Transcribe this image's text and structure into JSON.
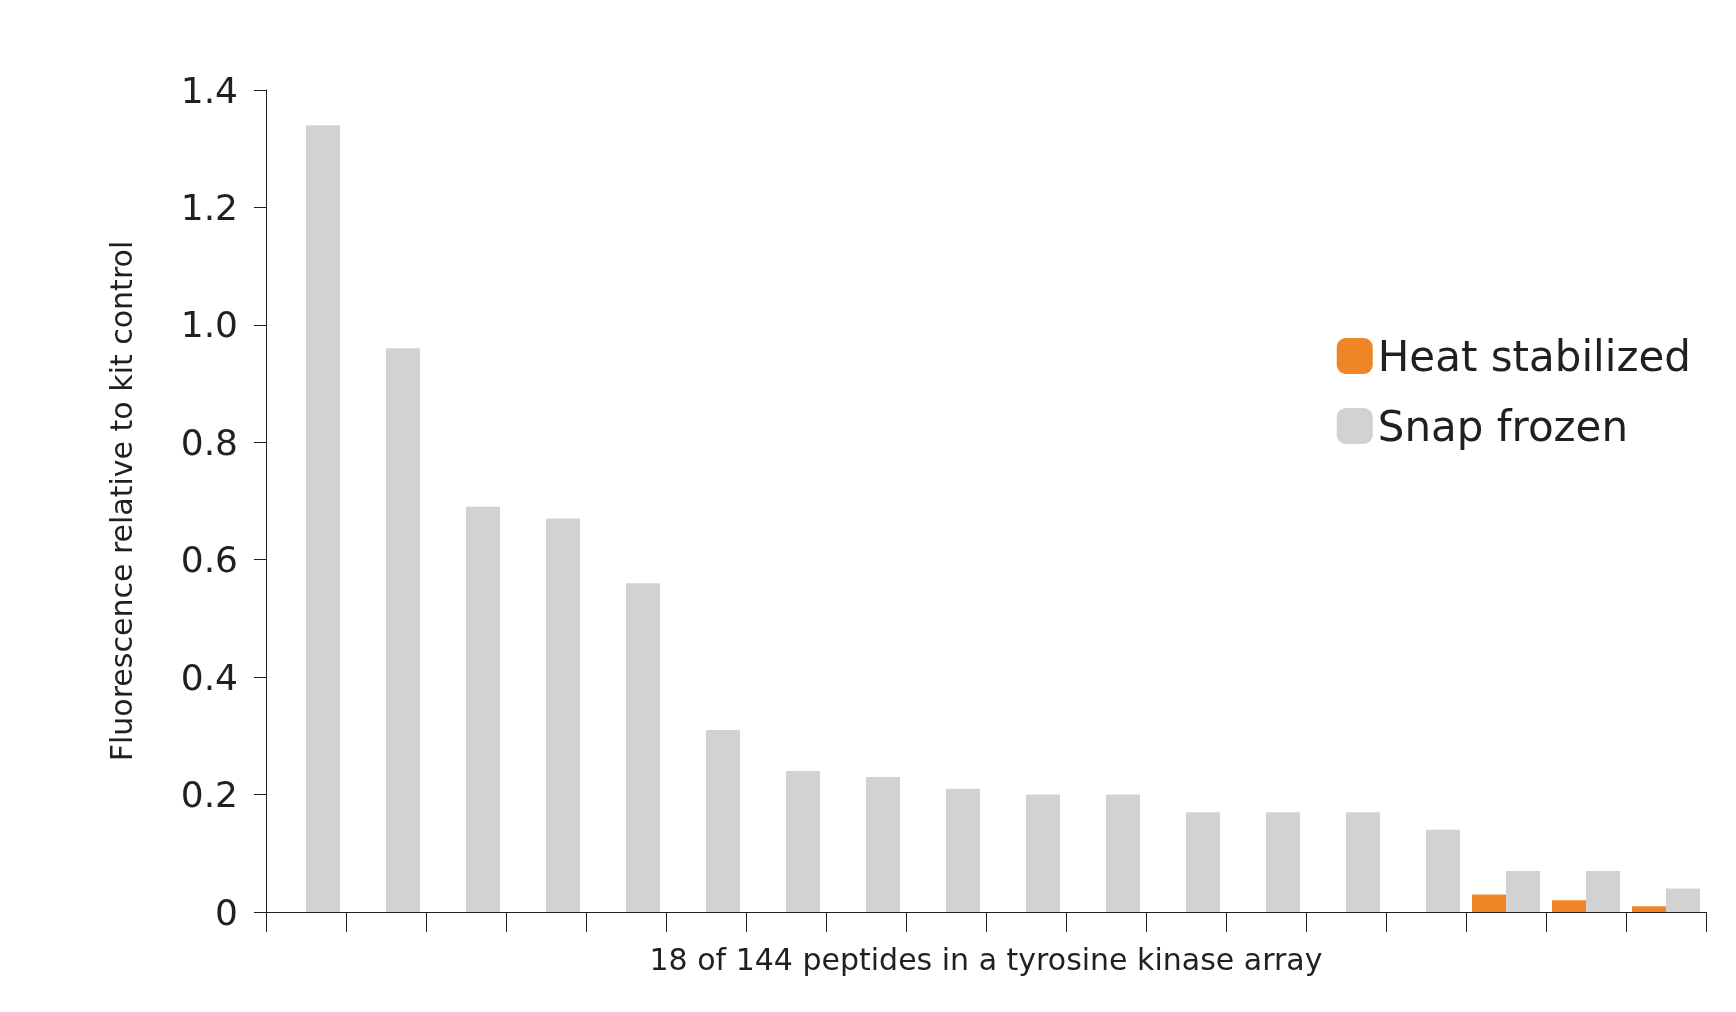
{
  "chart_data": {
    "type": "bar",
    "xlabel": "18 of 144 peptides in a tyrosine kinase array",
    "ylabel": "Fluorescence relative to kit control",
    "categories": [
      null,
      null,
      null,
      null,
      null,
      null,
      null,
      null,
      null,
      null,
      null,
      null,
      null,
      null,
      null,
      null,
      null,
      null
    ],
    "series": [
      {
        "name": "Heat stabilized",
        "color": "#f08526",
        "values": [
          null,
          null,
          null,
          null,
          null,
          null,
          null,
          null,
          null,
          null,
          null,
          null,
          null,
          null,
          null,
          0.03,
          0.02,
          0.01
        ]
      },
      {
        "name": "Snap frozen",
        "color": "#d1d2d4",
        "values": [
          1.34,
          0.96,
          0.69,
          0.67,
          0.56,
          0.31,
          0.24,
          0.23,
          0.21,
          0.2,
          0.2,
          0.17,
          0.17,
          0.17,
          0.14,
          0.07,
          0.07,
          0.04
        ]
      }
    ],
    "ylim": [
      0,
      1.4
    ],
    "yticks": [
      {
        "value": 0,
        "label": "0"
      },
      0.2,
      0.4,
      0.6,
      0.8,
      {
        "value": 1,
        "label": "1.0"
      },
      1.2,
      1.4
    ],
    "grid": false,
    "legend": "right"
  }
}
